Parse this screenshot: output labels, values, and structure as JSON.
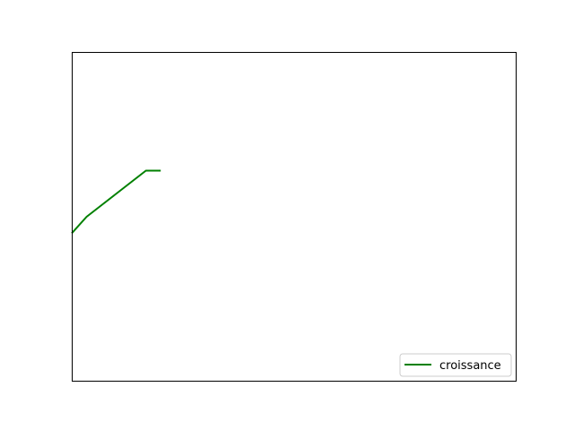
{
  "chart_data": {
    "type": "line",
    "title": "",
    "xlabel": "",
    "ylabel": "",
    "grid": false,
    "legend_position": "lower-right",
    "series": [
      {
        "name": "croissance",
        "color": "#008000",
        "x": [
          0,
          1,
          2,
          3,
          4,
          5,
          6
        ],
        "y": [
          1.0,
          1.5,
          1.85,
          2.2,
          2.55,
          2.9,
          2.9
        ]
      }
    ],
    "xlim": [
      0,
      30
    ],
    "ylim": [
      -3.5,
      6.5
    ]
  }
}
